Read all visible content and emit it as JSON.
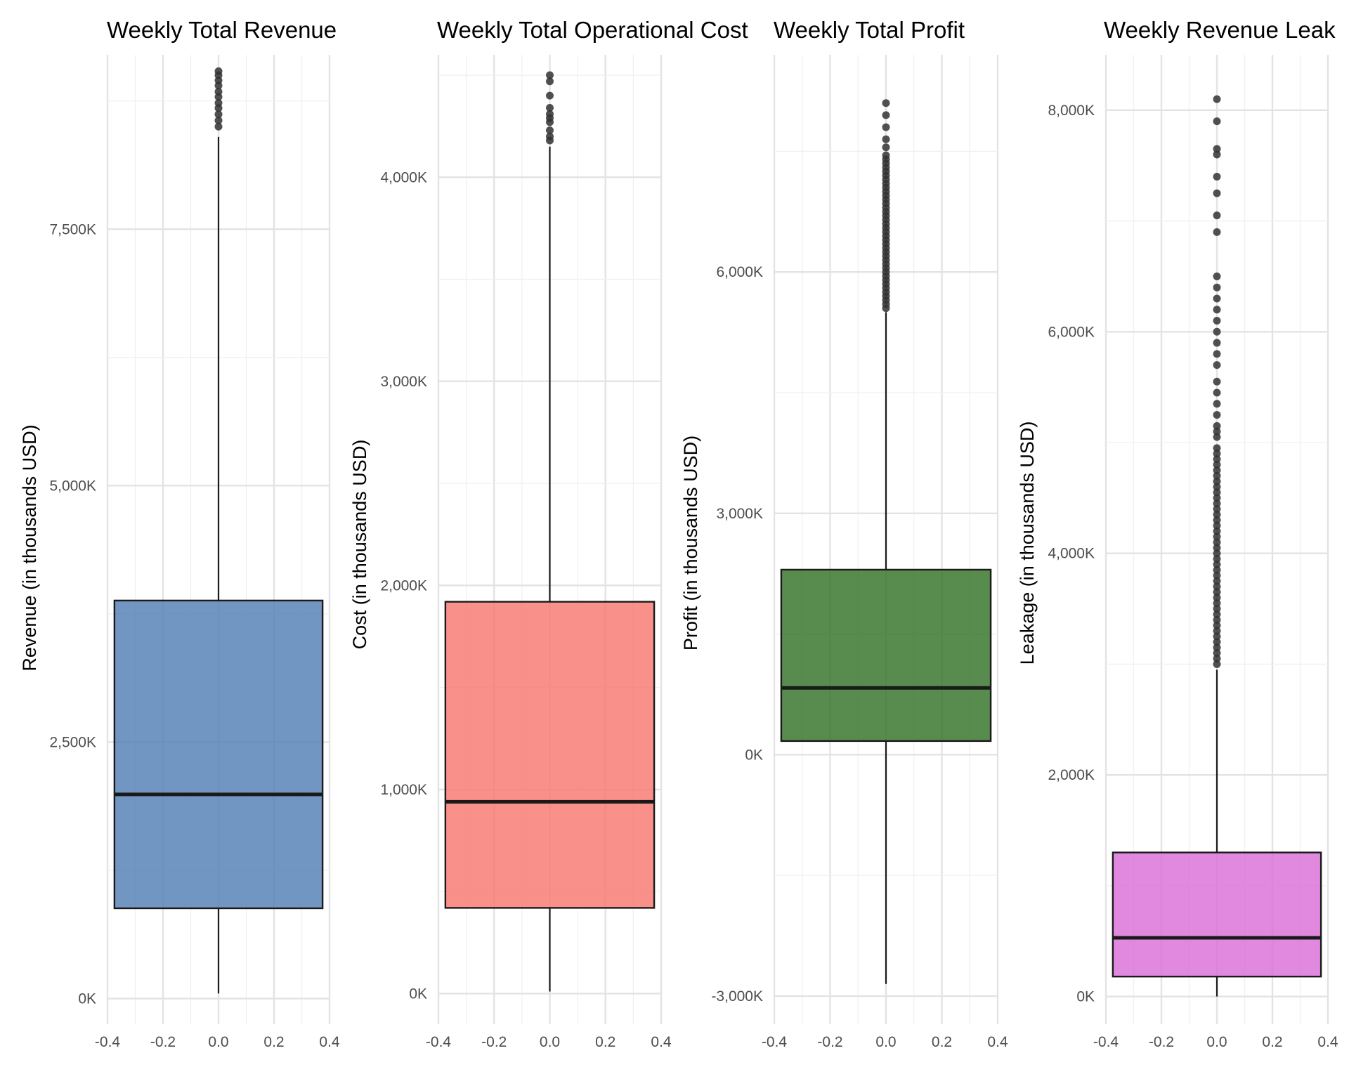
{
  "chart_data": [
    {
      "type": "boxplot",
      "title": "Weekly Total Revenue",
      "ylabel": "Revenue (in thousands USD)",
      "color": "#4F7CB3",
      "xlim": [
        -0.4,
        0.4
      ],
      "ylim": [
        -250,
        9200
      ],
      "y_ticks": [
        0,
        2500,
        5000,
        7500
      ],
      "y_tick_labels": [
        "0K",
        "2,500K",
        "5,000K",
        "7,500K"
      ],
      "x_ticks": [
        -0.4,
        -0.2,
        0.0,
        0.2,
        0.4
      ],
      "x_tick_labels": [
        "-0.4",
        "-0.2",
        "0.0",
        "0.2",
        "0.4"
      ],
      "box": {
        "x": 0.0,
        "width": 0.75,
        "whisker_low": 50,
        "q1": 880,
        "median": 1990,
        "q3": 3880,
        "whisker_high": 8400
      },
      "outliers": [
        8500,
        8560,
        8620,
        8680,
        8730,
        8790,
        8840,
        8900,
        8950,
        9000,
        9040
      ]
    },
    {
      "type": "boxplot",
      "title": "Weekly Total Operational Cost",
      "ylabel": "Cost (in thousands USD)",
      "color": "#F8766D",
      "xlim": [
        -0.4,
        0.4
      ],
      "ylim": [
        -150,
        4600
      ],
      "y_ticks": [
        0,
        1000,
        2000,
        3000,
        4000
      ],
      "y_tick_labels": [
        "0K",
        "1,000K",
        "2,000K",
        "3,000K",
        "4,000K"
      ],
      "x_ticks": [
        -0.4,
        -0.2,
        0.0,
        0.2,
        0.4
      ],
      "x_tick_labels": [
        "-0.4",
        "-0.2",
        "0.0",
        "0.2",
        "0.4"
      ],
      "box": {
        "x": 0.0,
        "width": 0.75,
        "whisker_low": 10,
        "q1": 420,
        "median": 940,
        "q3": 1920,
        "whisker_high": 4150
      },
      "outliers": [
        4180,
        4200,
        4230,
        4270,
        4290,
        4310,
        4340,
        4400,
        4470,
        4500
      ]
    },
    {
      "type": "boxplot",
      "title": "Weekly Total Profit",
      "ylabel": "Profit (in thousands USD)",
      "color": "#2E6E22",
      "xlim": [
        -0.4,
        0.4
      ],
      "ylim": [
        -3350,
        8700
      ],
      "y_ticks": [
        -3000,
        0,
        3000,
        6000
      ],
      "y_tick_labels": [
        "-3,000K",
        "0K",
        "3,000K",
        "6,000K"
      ],
      "x_ticks": [
        -0.4,
        -0.2,
        0.0,
        0.2,
        0.4
      ],
      "x_tick_labels": [
        "-0.4",
        "-0.2",
        "0.0",
        "0.2",
        "0.4"
      ],
      "box": {
        "x": 0.0,
        "width": 0.75,
        "whisker_low": -2850,
        "q1": 170,
        "median": 830,
        "q3": 2300,
        "whisker_high": 5500
      },
      "outliers": [
        5550,
        5600,
        5650,
        5700,
        5750,
        5800,
        5850,
        5900,
        5950,
        6000,
        6050,
        6100,
        6150,
        6200,
        6250,
        6300,
        6350,
        6400,
        6450,
        6500,
        6550,
        6600,
        6650,
        6700,
        6750,
        6800,
        6850,
        6900,
        6950,
        7000,
        7050,
        7100,
        7150,
        7200,
        7250,
        7300,
        7350,
        7400,
        7450,
        7550,
        7650,
        7800,
        7950,
        8100
      ]
    },
    {
      "type": "boxplot",
      "title": "Weekly Revenue Leak",
      "ylabel": "Leakage (in thousands USD)",
      "color": "#D86BD6",
      "xlim": [
        -0.4,
        0.4
      ],
      "ylim": [
        -250,
        8500
      ],
      "y_ticks": [
        0,
        2000,
        4000,
        6000,
        8000
      ],
      "y_tick_labels": [
        "0K",
        "2,000K",
        "4,000K",
        "6,000K",
        "8,000K"
      ],
      "x_ticks": [
        -0.4,
        -0.2,
        0.0,
        0.2,
        0.4
      ],
      "x_tick_labels": [
        "-0.4",
        "-0.2",
        "0.0",
        "0.2",
        "0.4"
      ],
      "box": {
        "x": 0.0,
        "width": 0.75,
        "whisker_low": 0,
        "q1": 180,
        "median": 530,
        "q3": 1300,
        "whisker_high": 2950
      },
      "outliers": [
        3000,
        3050,
        3100,
        3150,
        3200,
        3250,
        3300,
        3350,
        3400,
        3450,
        3500,
        3550,
        3600,
        3650,
        3700,
        3750,
        3800,
        3850,
        3900,
        3950,
        4000,
        4050,
        4100,
        4150,
        4200,
        4250,
        4300,
        4350,
        4400,
        4450,
        4500,
        4550,
        4600,
        4650,
        4700,
        4750,
        4800,
        4850,
        4900,
        4950,
        5050,
        5100,
        5150,
        5250,
        5350,
        5450,
        5550,
        5700,
        5800,
        5900,
        6000,
        6100,
        6200,
        6300,
        6400,
        6500,
        6900,
        7050,
        7250,
        7400,
        7600,
        7650,
        7900,
        8100
      ]
    }
  ]
}
